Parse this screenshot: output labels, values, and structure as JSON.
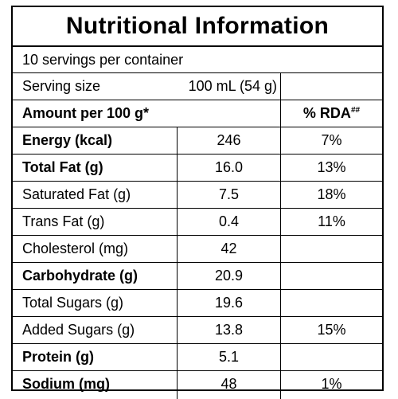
{
  "title": "Nutritional Information",
  "servings_line": "10 servings per container",
  "serving_size": {
    "label": "Serving size",
    "value": "100 mL (54 g)"
  },
  "header": {
    "amount": "Amount per 100 g*",
    "rda": "% RDA",
    "rda_mark": "##"
  },
  "rows": [
    {
      "name": "Energy (kcal)",
      "amount": "246",
      "rda": "7%",
      "bold": true
    },
    {
      "name": "Total Fat (g)",
      "amount": "16.0",
      "rda": "13%",
      "bold": true
    },
    {
      "name": "Saturated Fat (g)",
      "amount": "7.5",
      "rda": "18%",
      "bold": false
    },
    {
      "name": "Trans Fat (g)",
      "amount": "0.4",
      "rda": "11%",
      "bold": false
    },
    {
      "name": "Cholesterol (mg)",
      "amount": "42",
      "rda": "",
      "bold": false
    },
    {
      "name": "Carbohydrate (g)",
      "amount": "20.9",
      "rda": "",
      "bold": true
    },
    {
      "name": "Total Sugars (g)",
      "amount": "19.6",
      "rda": "",
      "bold": false
    },
    {
      "name": "Added Sugars (g)",
      "amount": "13.8",
      "rda": "15%",
      "bold": false
    },
    {
      "name": "Protein (g)",
      "amount": "5.1",
      "rda": "",
      "bold": true
    },
    {
      "name": "Sodium (mg)",
      "amount": "48",
      "rda": "1%",
      "bold": true
    }
  ]
}
